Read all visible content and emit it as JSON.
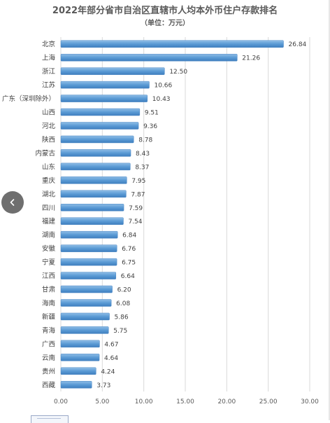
{
  "chart_data": {
    "type": "bar",
    "orientation": "horizontal",
    "title": "2022年部分省市自治区直辖市人均本外币住户存款排名",
    "subtitle": "（单位：万元）",
    "categories": [
      "北京",
      "上海",
      "浙江",
      "江苏",
      "广东（深圳除外）",
      "山西",
      "河北",
      "陕西",
      "内蒙古",
      "山东",
      "重庆",
      "湖北",
      "四川",
      "福建",
      "湖南",
      "安徽",
      "宁夏",
      "江西",
      "甘肃",
      "海南",
      "新疆",
      "青海",
      "广西",
      "云南",
      "贵州",
      "西藏"
    ],
    "values": [
      26.84,
      21.26,
      12.5,
      10.66,
      10.43,
      9.51,
      9.36,
      8.78,
      8.43,
      8.37,
      7.95,
      7.87,
      7.59,
      7.54,
      6.84,
      6.76,
      6.75,
      6.64,
      6.2,
      6.08,
      5.86,
      5.75,
      4.67,
      4.64,
      4.24,
      3.73
    ],
    "value_labels": [
      "26.84",
      "21.26",
      "12.50",
      "10.66",
      "10.43",
      "9.51",
      "9.36",
      "8.78",
      "8.43",
      "8.37",
      "7.95",
      "7.87",
      "7.59",
      "7.54",
      "6.84",
      "6.76",
      "6.75",
      "6.64",
      "6.20",
      "6.08",
      "5.86",
      "5.75",
      "4.67",
      "4.64",
      "4.24",
      "3.73"
    ],
    "xlim": [
      0,
      30
    ],
    "xticks": [
      "0.00",
      "5.00",
      "10.00",
      "15.00",
      "20.00",
      "25.00",
      "30.00"
    ],
    "grid": "vertical",
    "bar_color": "#5b9bd5",
    "legend": "none"
  },
  "nav": {
    "prev_icon": "chevron-left-icon"
  }
}
